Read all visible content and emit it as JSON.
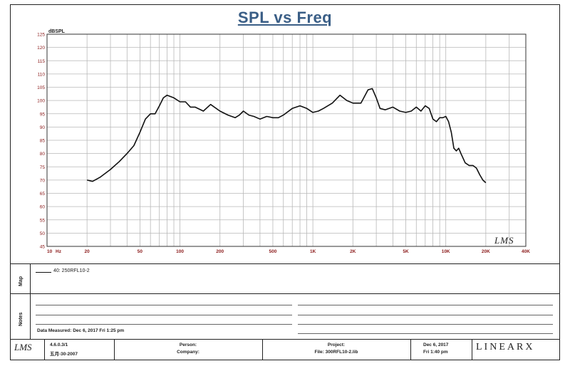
{
  "colors": {
    "title": "#3a5e86",
    "tick_label": "#8b1a1a",
    "grid": "#b8b8b8",
    "curve": "#111111"
  },
  "legend": {
    "title": "Map",
    "entry": "40: 250RFL10-2"
  },
  "notes": {
    "title": "Notes",
    "measured": "Data Measured: Dec 6, 2017 Fri 1:25 pm"
  },
  "footer": {
    "logo": "LMS",
    "version": "4.6.0.3/1",
    "version_date": "五月-30-2007",
    "person_label": "Person:",
    "company_label": "Company:",
    "project_label": "Project:",
    "file": "File: 300RFL10-2.lib",
    "date": "Dec 6, 2017",
    "time": "Fri 1:40 pm",
    "brand": "LINEARX"
  },
  "chart_data": {
    "type": "line",
    "title": "SPL vs Freq",
    "ylabel": "dBSPL",
    "xlabel": "Hz",
    "x_scale": "log",
    "xlim": [
      10,
      40000
    ],
    "ylim": [
      45,
      125
    ],
    "grid": true,
    "watermark": "LMS",
    "x_tick_labels": [
      "10",
      "20",
      "50",
      "100",
      "200",
      "500",
      "1K",
      "2K",
      "5K",
      "10K",
      "20K",
      "40K"
    ],
    "x_ticks": [
      10,
      20,
      50,
      100,
      200,
      500,
      1000,
      2000,
      5000,
      10000,
      20000,
      40000
    ],
    "y_ticks": [
      45,
      50,
      55,
      60,
      65,
      70,
      75,
      80,
      85,
      90,
      95,
      100,
      105,
      110,
      115,
      120,
      125
    ],
    "series": [
      {
        "x": [
          20,
          22,
          25,
          30,
          35,
          40,
          45,
          50,
          55,
          60,
          65,
          70,
          75,
          80,
          90,
          100,
          110,
          120,
          130,
          150,
          170,
          200,
          230,
          260,
          280,
          300,
          330,
          360,
          400,
          450,
          500,
          550,
          600,
          700,
          800,
          900,
          1000,
          1100,
          1200,
          1400,
          1600,
          1800,
          2000,
          2300,
          2600,
          2800,
          3000,
          3200,
          3500,
          4000,
          4500,
          5000,
          5500,
          6000,
          6500,
          7000,
          7500,
          8000,
          8500,
          9000,
          9500,
          10000,
          10500,
          11000,
          11500,
          12000,
          12500,
          13000,
          14000,
          15000,
          16000,
          17000,
          18000,
          19000,
          20000
        ],
        "y": [
          70,
          69.5,
          71,
          74,
          77,
          80,
          83,
          88,
          93,
          95,
          95,
          98,
          101,
          102,
          101,
          99.5,
          99.5,
          97.5,
          97.5,
          96,
          98.5,
          96,
          94.5,
          93.5,
          94.5,
          96,
          94.5,
          94,
          93,
          94,
          93.5,
          93.5,
          94.5,
          97,
          98,
          97,
          95.5,
          96,
          97,
          99,
          102,
          100,
          99,
          99,
          104,
          104.5,
          101,
          97,
          96.5,
          97.5,
          96,
          95.5,
          96,
          97.5,
          96,
          98,
          97,
          93,
          92,
          93.5,
          93.5,
          94,
          92,
          88,
          82,
          81,
          82,
          80,
          76.5,
          75.5,
          75.5,
          74.5,
          72,
          70,
          69
        ]
      }
    ]
  }
}
